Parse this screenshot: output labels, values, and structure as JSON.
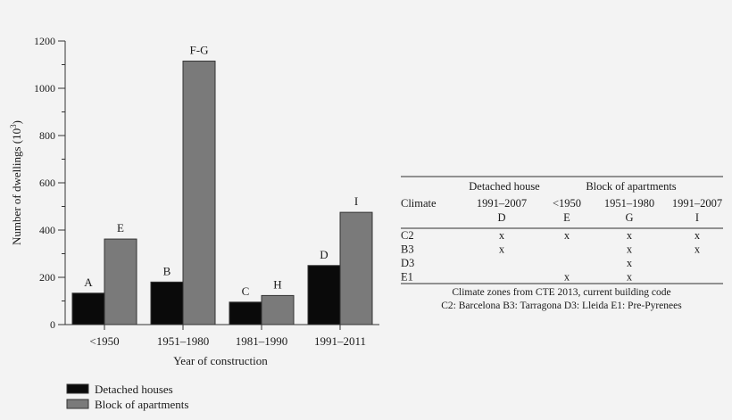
{
  "chart_data": {
    "type": "bar",
    "title": "",
    "xlabel": "Year of construction",
    "ylabel": "Number of dwellings (10",
    "ylabel_sup": "3",
    "ylabel_close": ")",
    "ylim": [
      0,
      1200
    ],
    "yticks": [
      0,
      200,
      400,
      600,
      800,
      1000,
      1200
    ],
    "categories": [
      "<1950",
      "1951–1980",
      "1981–1990",
      "1991–2011"
    ],
    "legend_position": "bottom-left",
    "series": [
      {
        "name": "Detached houses",
        "color": "#0a0a0a",
        "values": [
          133,
          180,
          95,
          250
        ],
        "labels": [
          "A",
          "B",
          "C",
          "D"
        ]
      },
      {
        "name": "Block of apartments",
        "color": "#7a7a7a",
        "values": [
          362,
          1115,
          123,
          475
        ],
        "labels": [
          "E",
          "F-G",
          "H",
          "I"
        ]
      }
    ]
  },
  "table": {
    "group_headers": [
      "Detached house",
      "Block of apartments"
    ],
    "row_header": "Climate",
    "columns": [
      {
        "years": "1991–2007",
        "code": "D"
      },
      {
        "years": "<1950",
        "code": "E"
      },
      {
        "years": "1951–1980",
        "code": "G"
      },
      {
        "years": "1991–2007",
        "code": "I"
      }
    ],
    "rows": [
      {
        "climate": "C2",
        "cells": [
          "x",
          "x",
          "x",
          "x"
        ]
      },
      {
        "climate": "B3",
        "cells": [
          "x",
          "",
          "x",
          "x"
        ]
      },
      {
        "climate": "D3",
        "cells": [
          "",
          "",
          "x",
          ""
        ]
      },
      {
        "climate": "E1",
        "cells": [
          "",
          "x",
          "x",
          ""
        ]
      }
    ],
    "caption_lines": [
      "Climate zones from CTE 2013, current building code",
      "C2: Barcelona B3: Tarragona D3: Lleida E1: Pre-Pyrenees"
    ]
  }
}
